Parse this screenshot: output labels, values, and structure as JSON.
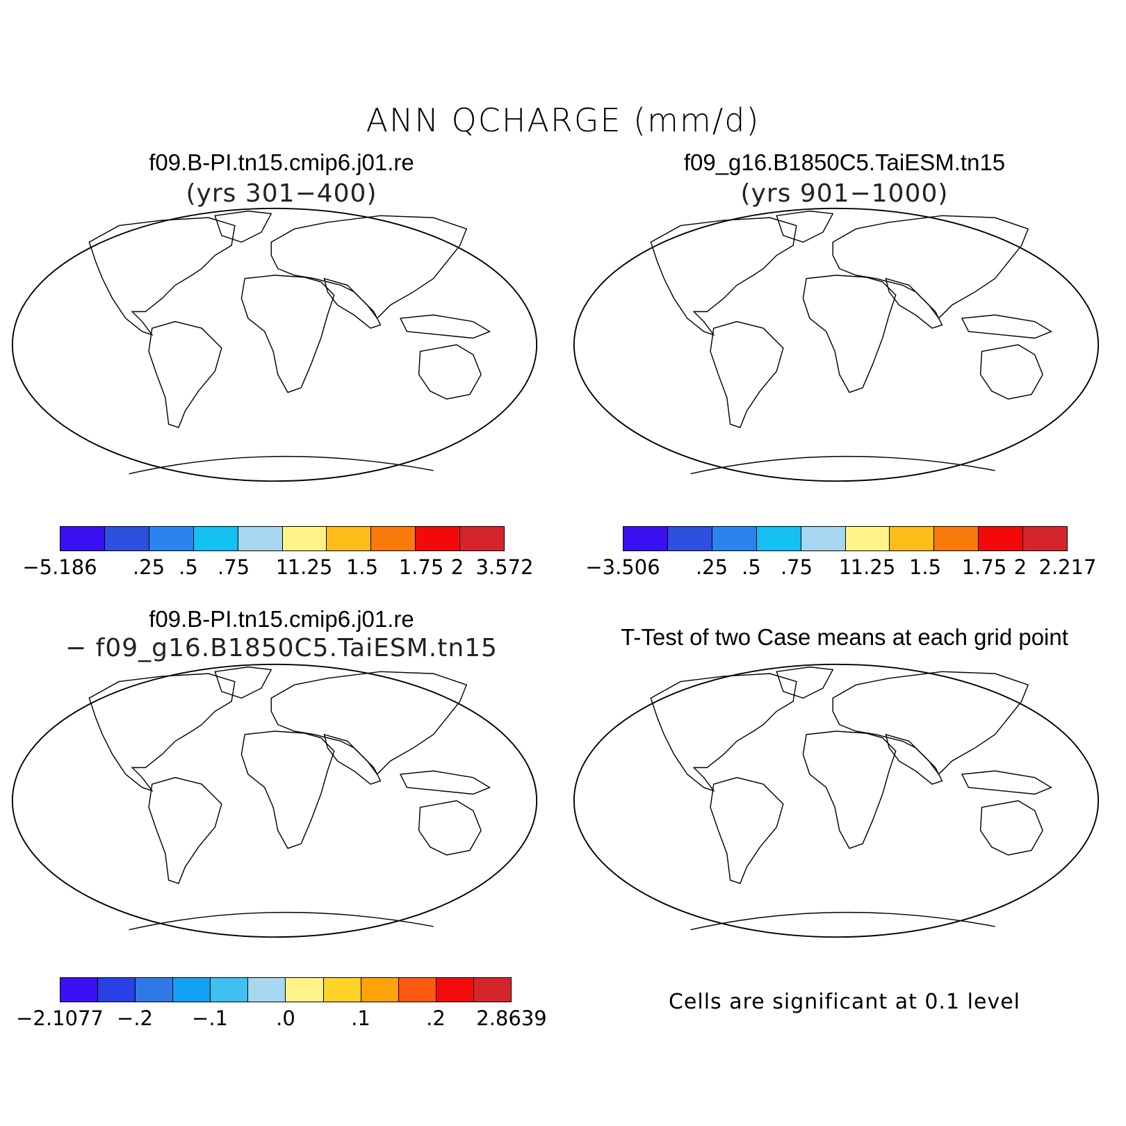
{
  "title": "ANN QCHARGE (mm/d)",
  "panels": {
    "top_left": {
      "case": "f09.B-PI.tn15.cmip6.j01.re",
      "years": "(yrs 301−400)",
      "colorbar": {
        "labels": [
          "−5.186",
          ".25",
          ".5",
          ".75",
          "1",
          "1.25",
          "1.5",
          "1.75",
          "2",
          "3.572"
        ],
        "colors": [
          "#3b10f2",
          "#2f4fe0",
          "#2a84f0",
          "#14bff2",
          "#a6d6f0",
          "#fff38a",
          "#fdbc1a",
          "#fb7a0c",
          "#f4090b",
          "#d6252a"
        ]
      }
    },
    "top_right": {
      "case": "f09_g16.B1850C5.TaiESM.tn15",
      "years": "(yrs 901−1000)",
      "colorbar": {
        "labels": [
          "−3.506",
          ".25",
          ".5",
          ".75",
          "1",
          "1.25",
          "1.5",
          "1.75",
          "2",
          "2.217"
        ],
        "colors": [
          "#3b10f2",
          "#2f4fe0",
          "#2a84f0",
          "#14bff2",
          "#a6d6f0",
          "#fff38a",
          "#fdbc1a",
          "#fb7a0c",
          "#f4090b",
          "#d6252a"
        ]
      }
    },
    "bottom_left": {
      "case": "f09.B-PI.tn15.cmip6.j01.re",
      "diff": "− f09_g16.B1850C5.TaiESM.tn15",
      "colorbar": {
        "labels": [
          "−2.1077",
          "−.2",
          "−.1",
          ".0",
          ".1",
          ".2",
          "2.8639"
        ],
        "colors": [
          "#3b10f2",
          "#2840e4",
          "#2f78e6",
          "#12a0f4",
          "#40c0f0",
          "#a8d8f0",
          "#fff38a",
          "#ffd22a",
          "#fea20a",
          "#fb5a10",
          "#f30a0a",
          "#d6252a"
        ]
      }
    },
    "bottom_right": {
      "title": "T-Test of two Case means at each grid point",
      "note": "Cells are significant at 0.1 level"
    }
  }
}
